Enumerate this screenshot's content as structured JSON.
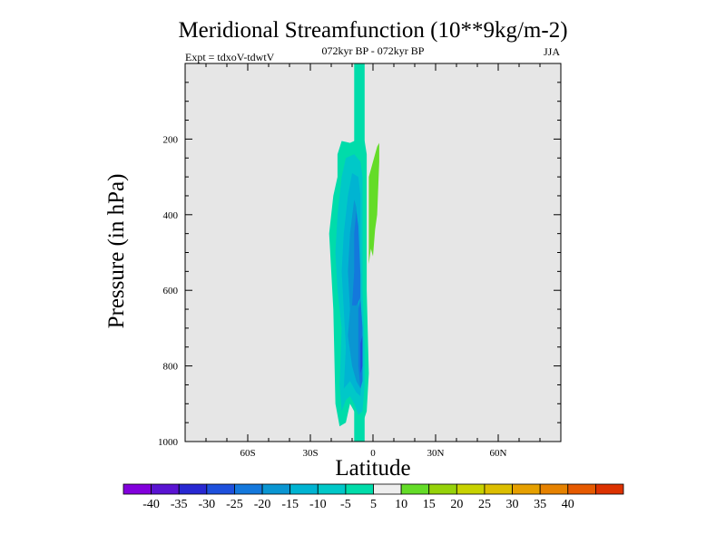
{
  "chart_data": {
    "type": "contour",
    "title": "Meridional Streamfunction (10**9kg/m-2)",
    "subtitle_left": "Expt = tdxoV-tdwtV",
    "subtitle_center": "072kyr BP - 072kyr BP",
    "subtitle_right": "JJA",
    "xlabel": "Latitude",
    "ylabel": "Pressure (in hPa)",
    "xlim": [
      -90,
      90
    ],
    "ylim": [
      1000,
      0
    ],
    "xticks": [
      {
        "value": -60,
        "label": "60S"
      },
      {
        "value": -30,
        "label": "30S"
      },
      {
        "value": 0,
        "label": "0"
      },
      {
        "value": 30,
        "label": "30N"
      },
      {
        "value": 60,
        "label": "60N"
      }
    ],
    "yticks": [
      {
        "value": 200,
        "label": "200"
      },
      {
        "value": 400,
        "label": "400"
      },
      {
        "value": 600,
        "label": "600"
      },
      {
        "value": 800,
        "label": "800"
      },
      {
        "value": 1000,
        "label": "1000"
      }
    ],
    "background_color": "#e6e6e6",
    "contour_levels": [
      -40,
      -35,
      -30,
      -25,
      -20,
      -15,
      -10,
      -5,
      5,
      10,
      15,
      20,
      25,
      30,
      35,
      40
    ],
    "colorbar_labels": [
      "-40",
      "-35",
      "-30",
      "-25",
      "-20",
      "-15",
      "-10",
      "-5",
      "5",
      "10",
      "15",
      "20",
      "25",
      "30",
      "35",
      "40"
    ],
    "colorbar_colors": [
      "#8200dc",
      "#5a14d2",
      "#2828d2",
      "#1e50dc",
      "#1478dc",
      "#0a96d2",
      "#00b4d2",
      "#00c8c8",
      "#00dcaa",
      "#eeeeee",
      "#64dc28",
      "#96d20a",
      "#c8d200",
      "#dcbe00",
      "#e6a000",
      "#e68200",
      "#e65a00",
      "#dc3200"
    ],
    "regions": [
      {
        "level": "-5 to -10",
        "color": "#00dcaa",
        "points": [
          [
            -9,
            1000
          ],
          [
            -9,
            0
          ],
          [
            -4,
            0
          ],
          [
            -4,
            1000
          ]
        ]
      },
      {
        "level": "-5 to -10",
        "color": "#00dcaa",
        "points": [
          [
            -16,
            960
          ],
          [
            -18,
            900
          ],
          [
            -19,
            650
          ],
          [
            -20,
            550
          ],
          [
            -21,
            450
          ],
          [
            -19,
            350
          ],
          [
            -17,
            300
          ],
          [
            -17,
            240
          ],
          [
            -15,
            205
          ],
          [
            -11,
            210
          ],
          [
            -7,
            200
          ],
          [
            -4,
            205
          ],
          [
            -3,
            240
          ],
          [
            -3,
            600
          ],
          [
            -2,
            820
          ],
          [
            -3,
            920
          ],
          [
            -6,
            970
          ],
          [
            -7,
            960
          ],
          [
            -9,
            920
          ],
          [
            -11,
            900
          ],
          [
            -13,
            950
          ]
        ]
      },
      {
        "level": "-10 to -15",
        "color": "#00c8c8",
        "points": [
          [
            -15,
            920
          ],
          [
            -16,
            850
          ],
          [
            -15,
            700
          ],
          [
            -17,
            600
          ],
          [
            -18,
            500
          ],
          [
            -17,
            400
          ],
          [
            -15,
            300
          ],
          [
            -13,
            250
          ],
          [
            -9,
            240
          ],
          [
            -6,
            260
          ],
          [
            -5,
            300
          ],
          [
            -5,
            600
          ],
          [
            -4,
            750
          ],
          [
            -4,
            850
          ],
          [
            -5,
            920
          ],
          [
            -7,
            930
          ],
          [
            -9,
            900
          ],
          [
            -11,
            880
          ],
          [
            -13,
            890
          ]
        ]
      },
      {
        "level": "-15 to -20",
        "color": "#00b4d2",
        "points": [
          [
            -14,
            860
          ],
          [
            -13,
            750
          ],
          [
            -14,
            650
          ],
          [
            -15,
            550
          ],
          [
            -14,
            450
          ],
          [
            -12,
            350
          ],
          [
            -10,
            290
          ],
          [
            -7,
            300
          ],
          [
            -6,
            350
          ],
          [
            -6,
            600
          ],
          [
            -5,
            800
          ],
          [
            -6,
            880
          ],
          [
            -8,
            870
          ],
          [
            -11,
            840
          ]
        ]
      },
      {
        "level": "-20 to -25",
        "color": "#0a96d2",
        "points": [
          [
            -12,
            720
          ],
          [
            -11,
            650
          ],
          [
            -12,
            550
          ],
          [
            -11,
            450
          ],
          [
            -9,
            360
          ],
          [
            -8,
            380
          ],
          [
            -7,
            450
          ],
          [
            -7,
            620
          ],
          [
            -6,
            760
          ],
          [
            -6,
            860
          ],
          [
            -8,
            840
          ],
          [
            -10,
            800
          ]
        ]
      },
      {
        "level": "-25 to -30",
        "color": "#1478dc",
        "points": [
          [
            -10,
            640
          ],
          [
            -9,
            550
          ],
          [
            -9,
            450
          ],
          [
            -8,
            390
          ],
          [
            -7,
            430
          ],
          [
            -6,
            560
          ],
          [
            -6,
            620
          ],
          [
            -8,
            640
          ]
        ]
      },
      {
        "level": "-25 to -30",
        "color": "#1478dc",
        "points": [
          [
            -7,
            650
          ],
          [
            -6,
            620
          ],
          [
            -5,
            700
          ],
          [
            -5,
            840
          ],
          [
            -6,
            860
          ],
          [
            -7,
            800
          ]
        ]
      },
      {
        "level": "-30 to -35",
        "color": "#1e50dc",
        "points": [
          [
            -6,
            740
          ],
          [
            -5,
            720
          ],
          [
            -5,
            800
          ],
          [
            -6,
            820
          ],
          [
            -6,
            780
          ]
        ]
      },
      {
        "level": "5 to 10",
        "color": "#64dc28",
        "points": [
          [
            -1,
            280
          ],
          [
            2,
            220
          ],
          [
            3,
            210
          ],
          [
            3,
            260
          ],
          [
            2,
            400
          ],
          [
            1,
            440
          ],
          [
            0,
            510
          ],
          [
            -1,
            490
          ],
          [
            -2,
            530
          ],
          [
            -2,
            460
          ],
          [
            -2,
            300
          ]
        ]
      }
    ]
  }
}
